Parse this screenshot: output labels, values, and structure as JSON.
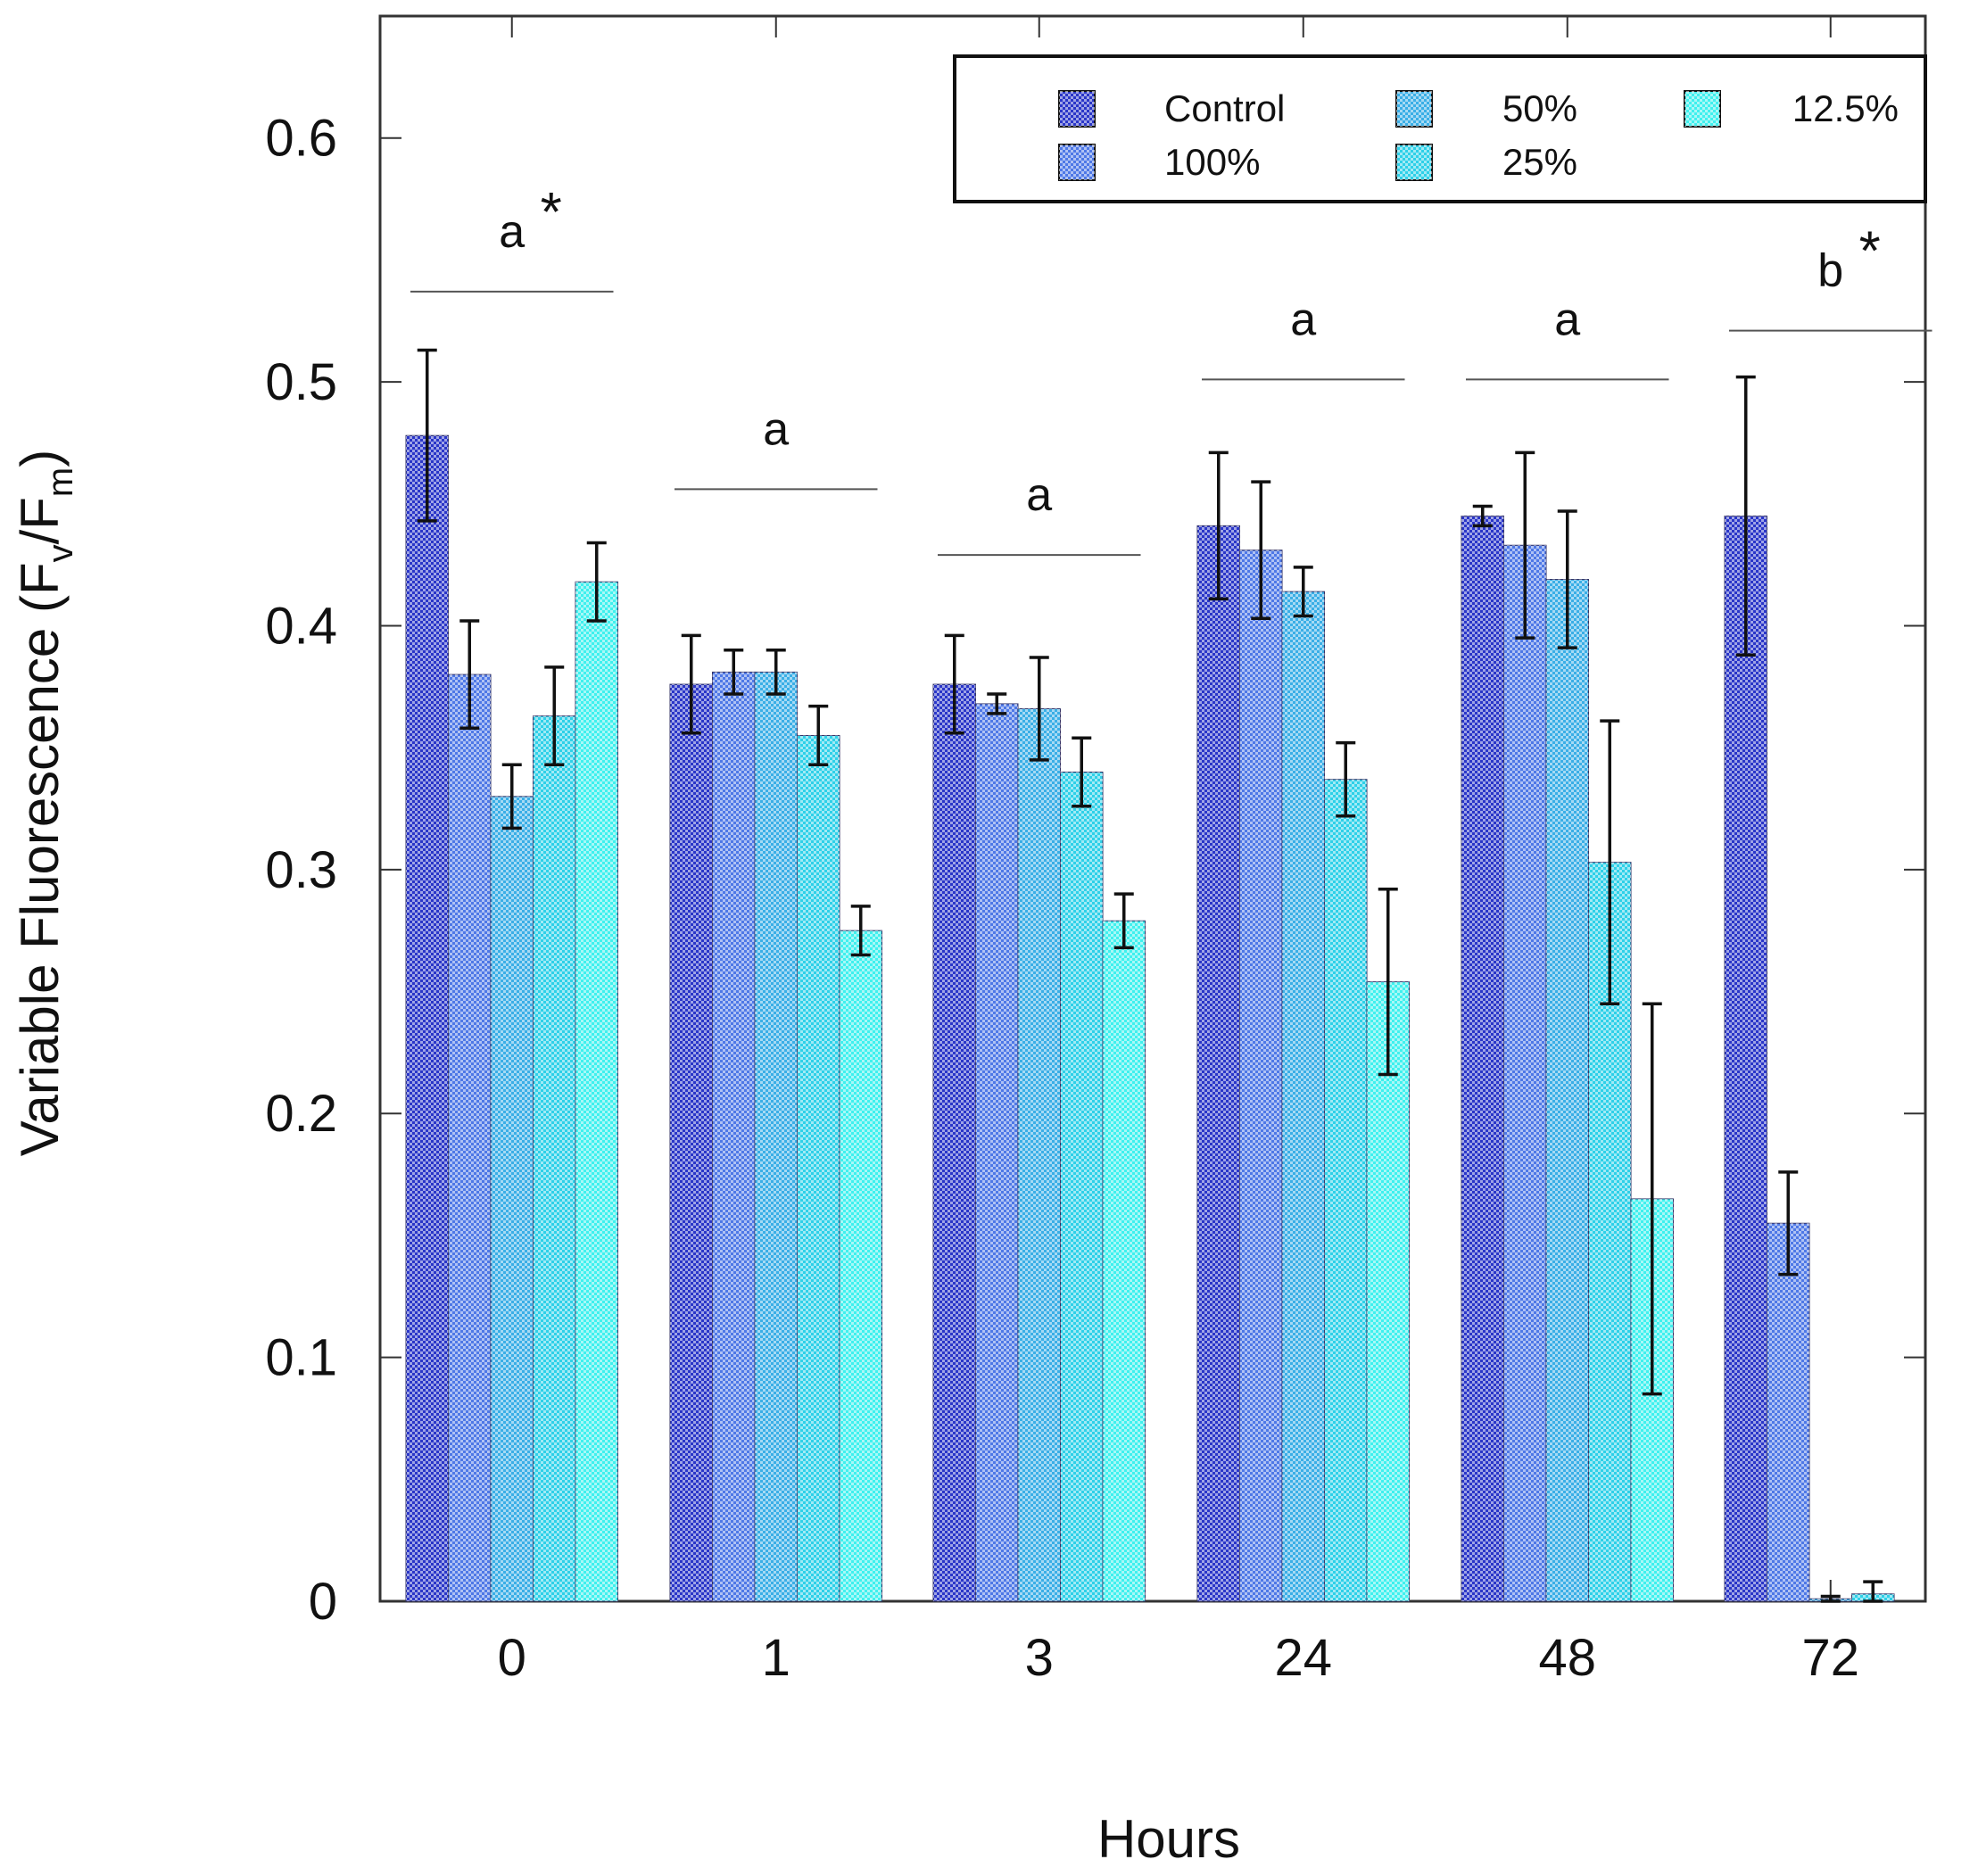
{
  "chart_data": {
    "type": "bar",
    "xlabel": "Hours",
    "ylabel": "Variable Fluorescence (F",
    "ylabel_sub_v": "v",
    "ylabel_mid": "/F",
    "ylabel_sub_m": "m",
    "ylabel_end": ")",
    "categories": [
      "0",
      "1",
      "3",
      "24",
      "48",
      "72"
    ],
    "ylim": [
      0,
      0.65
    ],
    "y_ticks": [
      "0",
      "0.1",
      "0.2",
      "0.3",
      "0.4",
      "0.5",
      "0.6"
    ],
    "y_tick_values": [
      0,
      0.1,
      0.2,
      0.3,
      0.4,
      0.5,
      0.6
    ],
    "grid": false,
    "legend_position": "top-right",
    "series": [
      {
        "name": "Control",
        "color": "#2a36c8",
        "values": [
          0.478,
          0.376,
          0.376,
          0.441,
          0.445,
          0.445
        ],
        "errors": [
          0.035,
          0.02,
          0.02,
          0.03,
          0.004,
          0.057
        ]
      },
      {
        "name": "100%",
        "color": "#4e78e6",
        "values": [
          0.38,
          0.381,
          0.368,
          0.431,
          0.433,
          0.155
        ],
        "errors": [
          0.022,
          0.009,
          0.004,
          0.028,
          0.038,
          0.021
        ]
      },
      {
        "name": "50%",
        "color": "#3aaee6",
        "values": [
          0.33,
          0.381,
          0.366,
          0.414,
          0.419,
          0.001
        ],
        "errors": [
          0.013,
          0.009,
          0.021,
          0.01,
          0.028,
          0.001
        ]
      },
      {
        "name": "25%",
        "color": "#2ed0e8",
        "values": [
          0.363,
          0.355,
          0.34,
          0.337,
          0.303,
          0.003
        ],
        "errors": [
          0.02,
          0.012,
          0.014,
          0.015,
          0.058,
          0.005
        ]
      },
      {
        "name": "12.5%",
        "color": "#3ff0ee",
        "values": [
          0.418,
          0.275,
          0.279,
          0.254,
          0.165,
          0.0
        ],
        "errors": [
          0.016,
          0.01,
          0.011,
          0.038,
          0.08,
          0.0
        ]
      }
    ],
    "annotations": [
      {
        "category": "0",
        "letter": "a",
        "star": "*",
        "line_y": 0.537
      },
      {
        "category": "1",
        "letter": "a",
        "star": "",
        "line_y": 0.456
      },
      {
        "category": "3",
        "letter": "a",
        "star": "",
        "line_y": 0.429
      },
      {
        "category": "24",
        "letter": "a",
        "star": "",
        "line_y": 0.501
      },
      {
        "category": "48",
        "letter": "a",
        "star": "",
        "line_y": 0.501
      },
      {
        "category": "72",
        "letter": "b",
        "star": "*",
        "line_y": 0.521
      }
    ]
  }
}
